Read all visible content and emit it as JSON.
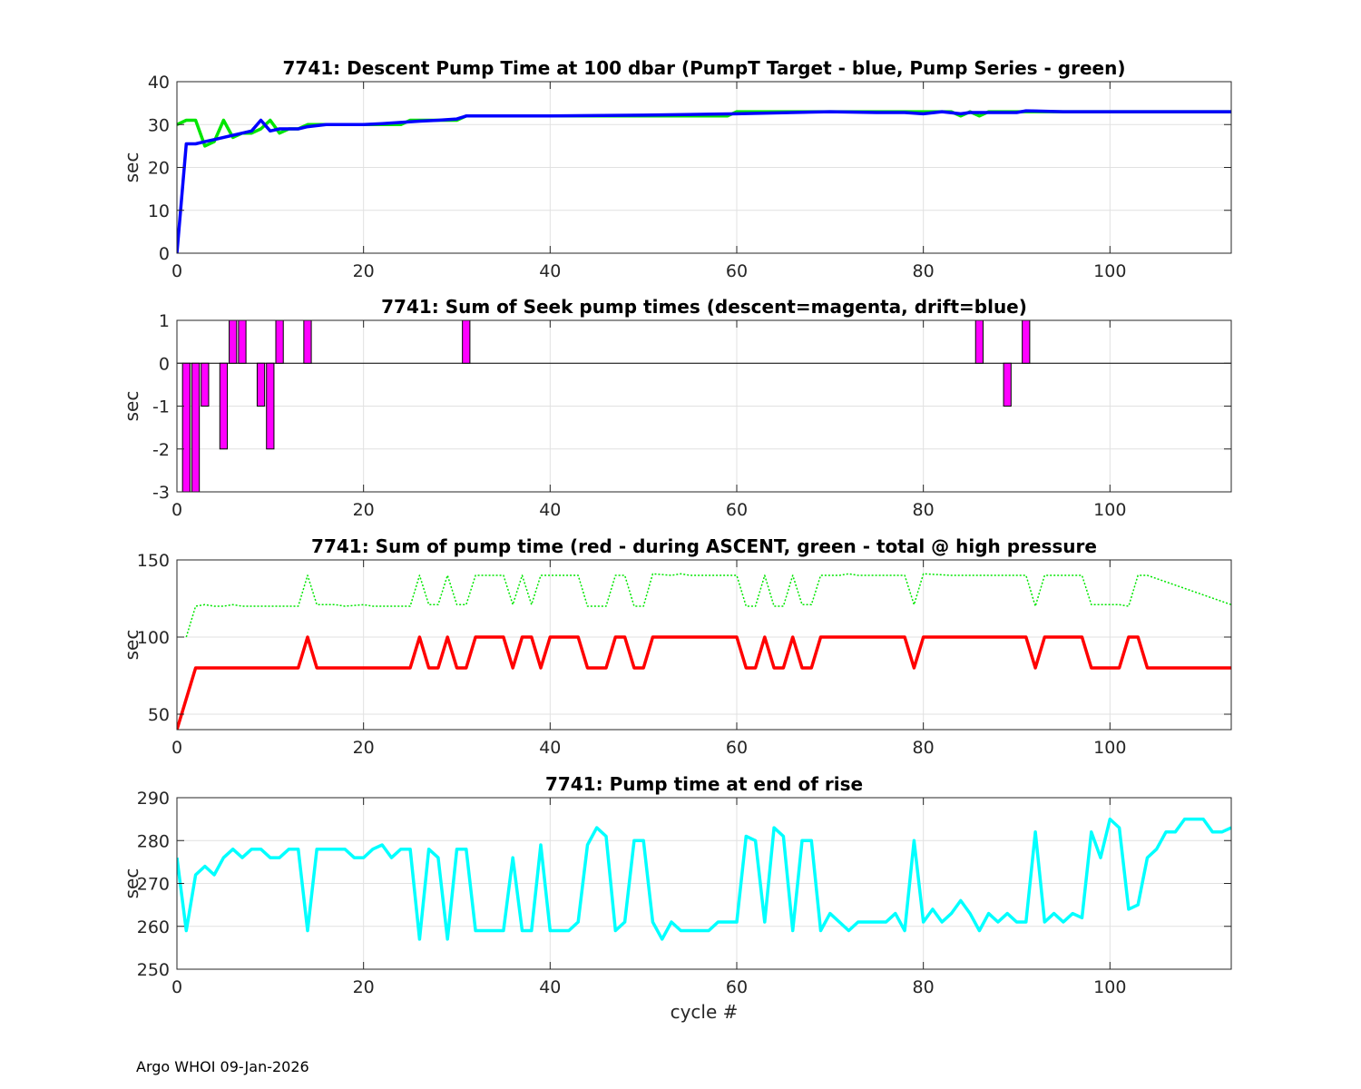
{
  "footer": "Argo WHOI 09-Jan-2026",
  "colors": {
    "green": "#00e600",
    "blue": "#0000ff",
    "magenta": "#ff00ff",
    "red": "#ff0000",
    "cyan": "#00ffff",
    "grid": "#e1e1e1",
    "axis": "#262626",
    "text": "#262626"
  },
  "chart_data": [
    {
      "type": "line",
      "title": "7741: Descent Pump Time at 100 dbar (PumpT Target - blue, Pump Series - green)",
      "xlabel": "",
      "ylabel": "sec",
      "xlim": [
        0,
        113
      ],
      "ylim": [
        0,
        40
      ],
      "xticks": [
        0,
        20,
        40,
        60,
        80,
        100
      ],
      "yticks": [
        0,
        10,
        20,
        30,
        40
      ],
      "grid": true,
      "series": [
        {
          "name": "Pump Series",
          "color": "green",
          "style": "solid",
          "x": [
            0,
            1,
            2,
            3,
            4,
            5,
            6,
            7,
            8,
            9,
            10,
            11,
            12,
            13,
            14,
            16,
            18,
            20,
            22,
            24,
            25,
            27,
            29,
            30,
            31,
            32,
            40,
            50,
            59,
            60,
            65,
            70,
            75,
            78,
            80,
            83,
            84,
            85,
            86,
            87,
            90,
            91,
            95,
            100,
            105,
            110,
            113
          ],
          "y": [
            30,
            31,
            31,
            25,
            26,
            31,
            27,
            28,
            28,
            29,
            31,
            28,
            29,
            29,
            30,
            30,
            30,
            30,
            30,
            30,
            31,
            31,
            31,
            31,
            32,
            32,
            32,
            32,
            32,
            33,
            33,
            33,
            33,
            33,
            33,
            33,
            32,
            33,
            32,
            33,
            33,
            33,
            33,
            33,
            33,
            33,
            33
          ]
        },
        {
          "name": "PumpT Target",
          "color": "blue",
          "style": "solid",
          "x": [
            0,
            1,
            2,
            3,
            4,
            5,
            6,
            7,
            8,
            9,
            10,
            11,
            12,
            13,
            14,
            16,
            18,
            20,
            22,
            24,
            26,
            28,
            30,
            31,
            32,
            40,
            50,
            60,
            70,
            75,
            78,
            80,
            82,
            84,
            85,
            87,
            89,
            90,
            91,
            95,
            100,
            105,
            110,
            113
          ],
          "y": [
            0,
            25.5,
            25.5,
            26,
            26.5,
            27,
            27.5,
            28,
            28.5,
            31,
            28.5,
            29,
            29,
            29,
            29.5,
            30,
            30,
            30,
            30.2,
            30.5,
            30.8,
            31,
            31.3,
            32,
            32,
            32,
            32.2,
            32.5,
            33,
            32.8,
            32.8,
            32.5,
            33,
            32.5,
            32.8,
            32.8,
            32.8,
            32.8,
            33.2,
            33,
            33,
            33,
            33,
            33
          ]
        }
      ]
    },
    {
      "type": "bar",
      "title": "7741: Sum of Seek pump times (descent=magenta, drift=blue)",
      "xlabel": "",
      "ylabel": "sec",
      "xlim": [
        0,
        113
      ],
      "ylim": [
        -3,
        1
      ],
      "xticks": [
        0,
        20,
        40,
        60,
        80,
        100
      ],
      "yticks": [
        -3,
        -2,
        -1,
        0,
        1
      ],
      "grid": true,
      "series": [
        {
          "name": "descent",
          "color": "magenta",
          "x": [
            1,
            2,
            3,
            5,
            6,
            7,
            9,
            10,
            11,
            14,
            31,
            86,
            89,
            91
          ],
          "values": [
            -3,
            -3,
            -1,
            -2,
            1,
            1,
            -1,
            -2,
            1,
            1,
            1,
            1,
            -1,
            1
          ]
        }
      ]
    },
    {
      "type": "line",
      "title": "7741: Sum of pump time (red - during ASCENT, green - total @ high pressure",
      "xlabel": "",
      "ylabel": "sec",
      "xlim": [
        0,
        113
      ],
      "ylim": [
        40,
        150
      ],
      "xticks": [
        0,
        20,
        40,
        60,
        80,
        100
      ],
      "yticks": [
        50,
        100,
        150
      ],
      "grid": true,
      "series": [
        {
          "name": "total @ high pressure",
          "color": "green",
          "style": "dotted",
          "x": [
            1,
            2,
            3,
            4,
            5,
            6,
            7,
            8,
            10,
            13,
            14,
            15,
            17,
            18,
            20,
            21,
            22,
            25,
            26,
            27,
            28,
            29,
            30,
            31,
            32,
            35,
            36,
            37,
            38,
            39,
            40,
            43,
            44,
            46,
            47,
            48,
            49,
            50,
            51,
            53,
            54,
            55,
            59,
            60,
            61,
            62,
            63,
            64,
            65,
            66,
            67,
            68,
            69,
            71,
            72,
            73,
            78,
            79,
            80,
            83,
            91,
            92,
            93,
            97,
            98,
            101,
            102,
            103,
            104,
            113
          ],
          "y": [
            100,
            120,
            121,
            120,
            120,
            121,
            120,
            120,
            120,
            120,
            140,
            121,
            121,
            120,
            121,
            120,
            120,
            120,
            140,
            121,
            121,
            140,
            121,
            121,
            140,
            140,
            121,
            140,
            121,
            140,
            140,
            140,
            120,
            120,
            140,
            140,
            120,
            120,
            141,
            140,
            141,
            140,
            140,
            140,
            120,
            120,
            140,
            120,
            120,
            140,
            121,
            121,
            140,
            140,
            141,
            140,
            140,
            121,
            141,
            140,
            140,
            120,
            140,
            140,
            121,
            121,
            120,
            140,
            140,
            121
          ]
        },
        {
          "name": "during ASCENT",
          "color": "red",
          "style": "solid",
          "x": [
            0,
            2,
            13,
            14,
            15,
            25,
            26,
            27,
            28,
            29,
            30,
            31,
            32,
            35,
            36,
            37,
            38,
            39,
            40,
            43,
            44,
            46,
            47,
            48,
            49,
            50,
            51,
            60,
            61,
            62,
            63,
            64,
            65,
            66,
            67,
            68,
            69,
            78,
            79,
            80,
            91,
            92,
            93,
            97,
            98,
            101,
            102,
            103,
            104,
            113
          ],
          "y": [
            40,
            80,
            80,
            100,
            80,
            80,
            100,
            80,
            80,
            100,
            80,
            80,
            100,
            100,
            80,
            100,
            100,
            80,
            100,
            100,
            80,
            80,
            100,
            100,
            80,
            80,
            100,
            100,
            80,
            80,
            100,
            80,
            80,
            100,
            80,
            80,
            100,
            100,
            80,
            100,
            100,
            80,
            100,
            100,
            80,
            80,
            100,
            100,
            80,
            80
          ]
        }
      ]
    },
    {
      "type": "line",
      "title": "7741: Pump time at end of rise",
      "xlabel": "cycle #",
      "ylabel": "sec",
      "xlim": [
        0,
        113
      ],
      "ylim": [
        250,
        290
      ],
      "xticks": [
        0,
        20,
        40,
        60,
        80,
        100
      ],
      "yticks": [
        250,
        260,
        270,
        280,
        290
      ],
      "grid": true,
      "series": [
        {
          "name": "end of rise",
          "color": "cyan",
          "style": "solid",
          "x": [
            0,
            1,
            2,
            3,
            4,
            5,
            6,
            7,
            8,
            9,
            10,
            11,
            12,
            13,
            14,
            15,
            16,
            17,
            18,
            19,
            20,
            21,
            22,
            23,
            24,
            25,
            26,
            27,
            28,
            29,
            30,
            31,
            32,
            33,
            34,
            35,
            36,
            37,
            38,
            39,
            40,
            41,
            42,
            43,
            44,
            45,
            46,
            47,
            48,
            49,
            50,
            51,
            52,
            53,
            54,
            55,
            56,
            57,
            58,
            59,
            60,
            61,
            62,
            63,
            64,
            65,
            66,
            67,
            68,
            69,
            70,
            71,
            72,
            73,
            74,
            75,
            76,
            77,
            78,
            79,
            80,
            81,
            82,
            83,
            84,
            85,
            86,
            87,
            88,
            89,
            90,
            91,
            92,
            93,
            94,
            95,
            96,
            97,
            98,
            99,
            100,
            101,
            102,
            103,
            104,
            105,
            106,
            107,
            108,
            109,
            110,
            111,
            112,
            113
          ],
          "y": [
            276,
            259,
            272,
            274,
            272,
            276,
            278,
            276,
            278,
            278,
            276,
            276,
            278,
            278,
            259,
            278,
            278,
            278,
            278,
            276,
            276,
            278,
            279,
            276,
            278,
            278,
            257,
            278,
            276,
            257,
            278,
            278,
            259,
            259,
            259,
            259,
            276,
            259,
            259,
            279,
            259,
            259,
            259,
            261,
            279,
            283,
            281,
            259,
            261,
            280,
            280,
            261,
            257,
            261,
            259,
            259,
            259,
            259,
            261,
            261,
            261,
            281,
            280,
            261,
            283,
            281,
            259,
            280,
            280,
            259,
            263,
            261,
            259,
            261,
            261,
            261,
            261,
            263,
            259,
            280,
            261,
            264,
            261,
            263,
            266,
            263,
            259,
            263,
            261,
            263,
            261,
            261,
            282,
            261,
            263,
            261,
            263,
            262,
            282,
            276,
            285,
            283,
            264,
            265,
            276,
            278,
            282,
            282,
            285,
            285,
            285,
            282,
            282,
            283
          ]
        }
      ]
    }
  ]
}
